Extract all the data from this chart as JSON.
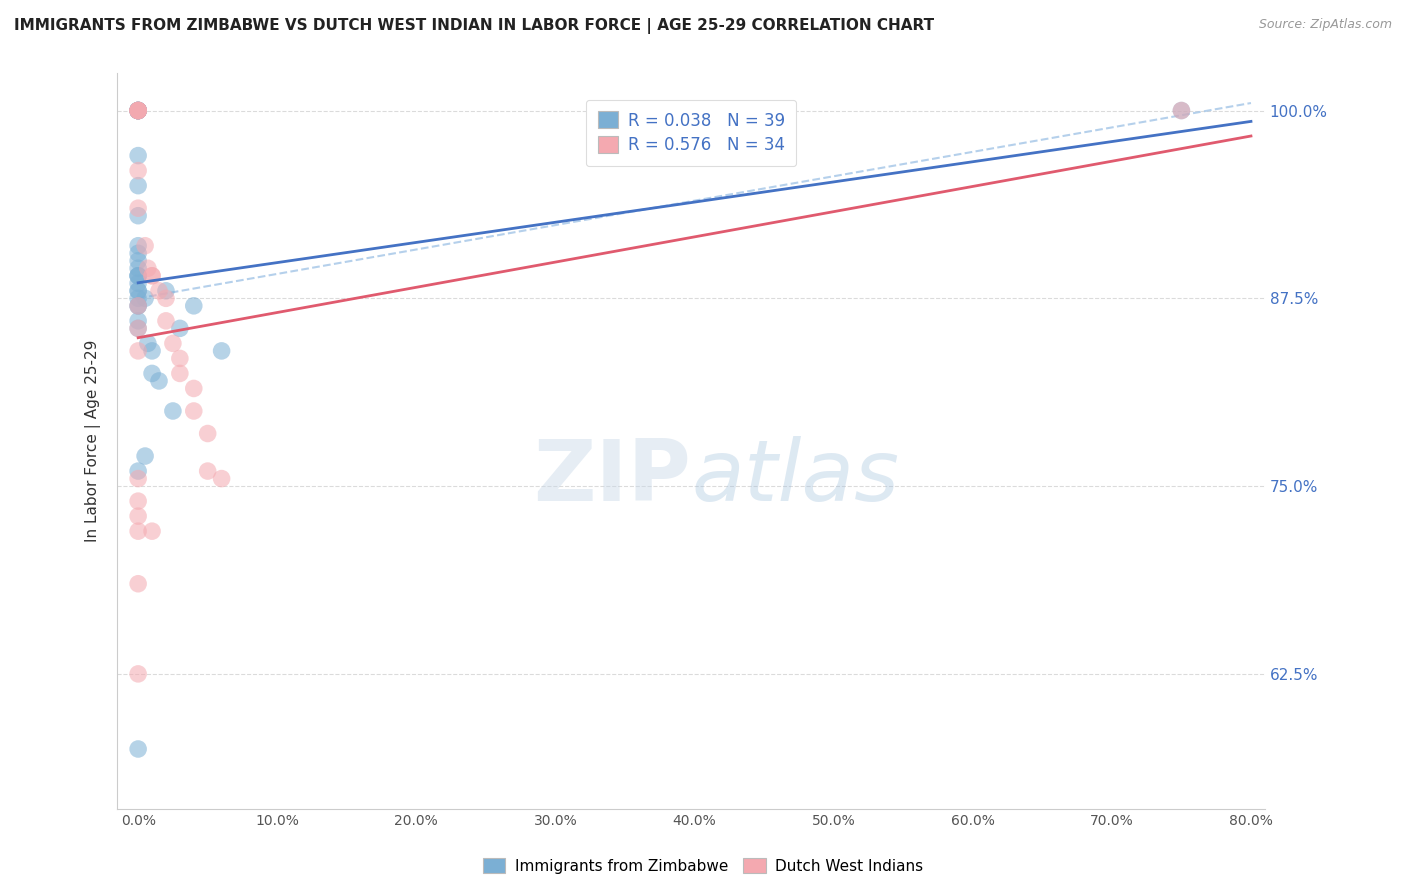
{
  "title": "IMMIGRANTS FROM ZIMBABWE VS DUTCH WEST INDIAN IN LABOR FORCE | AGE 25-29 CORRELATION CHART",
  "source": "Source: ZipAtlas.com",
  "ylabel": "In Labor Force | Age 25-29",
  "xlim": [
    -0.015,
    0.81
  ],
  "ylim": [
    0.535,
    1.025
  ],
  "watermark_zip": "ZIP",
  "watermark_atlas": "atlas",
  "legend_line1": "R = 0.038   N = 39",
  "legend_line2": "R = 0.576   N = 34",
  "color_blue": "#7BAFD4",
  "color_pink": "#F4A9B0",
  "color_blue_line": "#4472C4",
  "color_pink_line": "#E05A6E",
  "color_blue_dashed": "#A8C8E8",
  "color_axis_labels": "#4472C4",
  "color_grid": "#CCCCCC",
  "zimbabwe_x": [
    0.0,
    0.0,
    0.0,
    0.0,
    0.0,
    0.0,
    0.0,
    0.0,
    0.0,
    0.0,
    0.0,
    0.0,
    0.0,
    0.0,
    0.0,
    0.0,
    0.0,
    0.0,
    0.0,
    0.0,
    0.0,
    0.0,
    0.0,
    0.0,
    0.0,
    0.005,
    0.007,
    0.01,
    0.01,
    0.015,
    0.02,
    0.025,
    0.03,
    0.04,
    0.06,
    0.75,
    0.0,
    0.005,
    0.0
  ],
  "zimbabwe_y": [
    1.0,
    1.0,
    1.0,
    1.0,
    1.0,
    1.0,
    1.0,
    0.97,
    0.95,
    0.93,
    0.91,
    0.905,
    0.9,
    0.895,
    0.89,
    0.89,
    0.89,
    0.885,
    0.88,
    0.88,
    0.875,
    0.87,
    0.87,
    0.86,
    0.855,
    0.875,
    0.845,
    0.84,
    0.825,
    0.82,
    0.88,
    0.8,
    0.855,
    0.87,
    0.84,
    1.0,
    0.575,
    0.77,
    0.76
  ],
  "dutch_x": [
    0.0,
    0.0,
    0.0,
    0.0,
    0.0,
    0.0,
    0.0,
    0.0,
    0.005,
    0.007,
    0.01,
    0.01,
    0.015,
    0.02,
    0.02,
    0.025,
    0.03,
    0.03,
    0.04,
    0.04,
    0.05,
    0.05,
    0.06,
    0.0,
    0.0,
    0.0,
    0.0,
    0.0,
    0.0,
    0.0,
    0.75,
    0.0,
    0.01,
    0.0
  ],
  "dutch_y": [
    1.0,
    1.0,
    1.0,
    1.0,
    1.0,
    1.0,
    0.96,
    0.935,
    0.91,
    0.895,
    0.89,
    0.89,
    0.88,
    0.875,
    0.86,
    0.845,
    0.835,
    0.825,
    0.815,
    0.8,
    0.785,
    0.76,
    0.755,
    0.87,
    0.855,
    0.84,
    0.755,
    0.74,
    0.73,
    0.72,
    1.0,
    0.685,
    0.72,
    0.625
  ],
  "x_ticks": [
    0.0,
    0.1,
    0.2,
    0.3,
    0.4,
    0.5,
    0.6,
    0.7,
    0.8
  ],
  "x_tick_labels": [
    "0.0%",
    "10.0%",
    "20.0%",
    "30.0%",
    "40.0%",
    "50.0%",
    "60.0%",
    "70.0%",
    "80.0%"
  ],
  "y_ticks": [
    0.625,
    0.75,
    0.875,
    1.0
  ],
  "y_tick_labels": [
    "62.5%",
    "75.0%",
    "87.5%",
    "100.0%"
  ]
}
